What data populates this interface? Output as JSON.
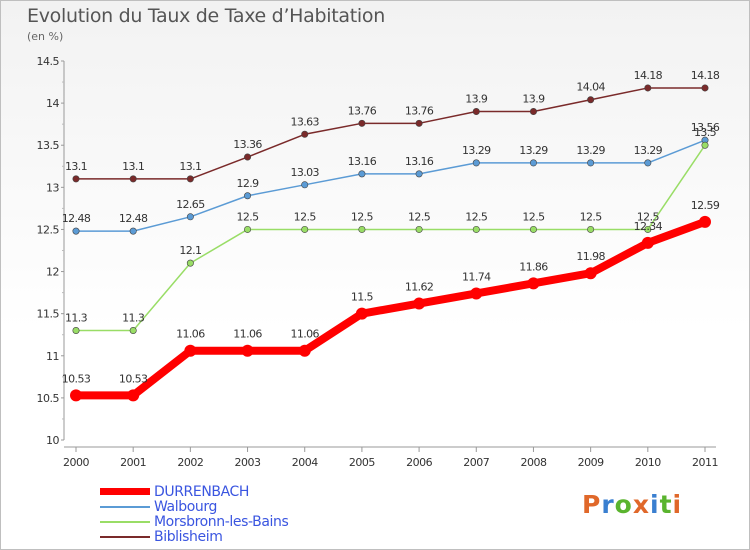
{
  "header": {
    "title": "Evolution du Taux de Taxe d’Habitation",
    "subtitle": "(en %)"
  },
  "brand": {
    "text": "Proxiti",
    "letter_colors": [
      "#e0682a",
      "#3a7fd0",
      "#5ab42e",
      "#e0682a",
      "#3a7fd0",
      "#5ab42e",
      "#e0682a"
    ]
  },
  "chart_data": {
    "type": "line",
    "title": "Evolution du Taux de Taxe d’Habitation",
    "subtitle": "(en %)",
    "xlabel": "",
    "ylabel": "",
    "x": [
      "2000",
      "2001",
      "2002",
      "2003",
      "2004",
      "2005",
      "2006",
      "2007",
      "2008",
      "2009",
      "2010",
      "2011"
    ],
    "ylim": [
      10,
      14.5
    ],
    "yticks": [
      "10",
      "10.5",
      "11",
      "11.5",
      "12",
      "12.5",
      "13",
      "13.5",
      "14",
      "14.5"
    ],
    "grid": false,
    "legend_position": "bottom-left",
    "series": [
      {
        "name": "DURRENBACH",
        "color": "#ff0000",
        "values": [
          10.53,
          10.53,
          11.06,
          11.06,
          11.06,
          11.5,
          11.62,
          11.74,
          11.86,
          11.98,
          12.34,
          12.59
        ],
        "labels": [
          "10.53",
          "10.53",
          "11.06",
          "11.06",
          "11.06",
          "11.5",
          "11.62",
          "11.74",
          "11.86",
          "11.98",
          "12.34",
          "12.59"
        ]
      },
      {
        "name": "Walbourg",
        "color": "#5b9bd5",
        "values": [
          12.48,
          12.48,
          12.65,
          12.9,
          13.03,
          13.16,
          13.16,
          13.29,
          13.29,
          13.29,
          13.29,
          13.56
        ],
        "labels": [
          "12.48",
          "12.48",
          "12.65",
          "12.9",
          "13.03",
          "13.16",
          "13.16",
          "13.29",
          "13.29",
          "13.29",
          "13.29",
          "13.56"
        ]
      },
      {
        "name": "Morsbronn-les-Bains",
        "color": "#99dd66",
        "values": [
          11.3,
          11.3,
          12.1,
          12.5,
          12.5,
          12.5,
          12.5,
          12.5,
          12.5,
          12.5,
          12.5,
          13.5
        ],
        "labels": [
          "11.3",
          "11.3",
          "12.1",
          "12.5",
          "12.5",
          "12.5",
          "12.5",
          "12.5",
          "12.5",
          "12.5",
          "12.5",
          "13.5"
        ]
      },
      {
        "name": "Biblisheim",
        "color": "#7a2a2a",
        "values": [
          13.1,
          13.1,
          13.1,
          13.36,
          13.63,
          13.76,
          13.76,
          13.9,
          13.9,
          14.04,
          14.18,
          14.18
        ],
        "labels": [
          "13.1",
          "13.1",
          "13.1",
          "13.36",
          "13.63",
          "13.76",
          "13.76",
          "13.9",
          "13.9",
          "14.04",
          "14.18",
          "14.18"
        ]
      }
    ]
  }
}
